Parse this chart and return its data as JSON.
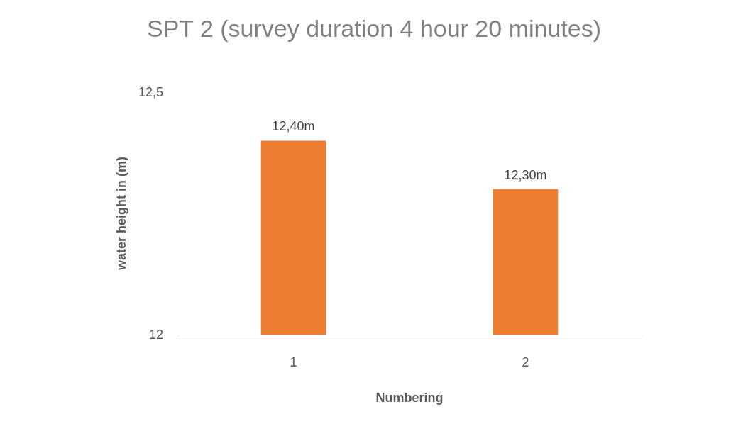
{
  "chart_data": {
    "type": "bar",
    "title": "SPT 2 (survey duration 4 hour 20 minutes)",
    "xlabel": "Numbering",
    "ylabel": "water height in (m)",
    "categories": [
      "1",
      "2"
    ],
    "values": [
      12.4,
      12.3
    ],
    "value_labels": [
      "12,40m",
      "12,30m"
    ],
    "color": "#ed7d31",
    "ylim": [
      12,
      12.5
    ],
    "yticks": [
      12,
      {
        "value": 12.5,
        "label": "12,5"
      }
    ],
    "grid": false
  }
}
